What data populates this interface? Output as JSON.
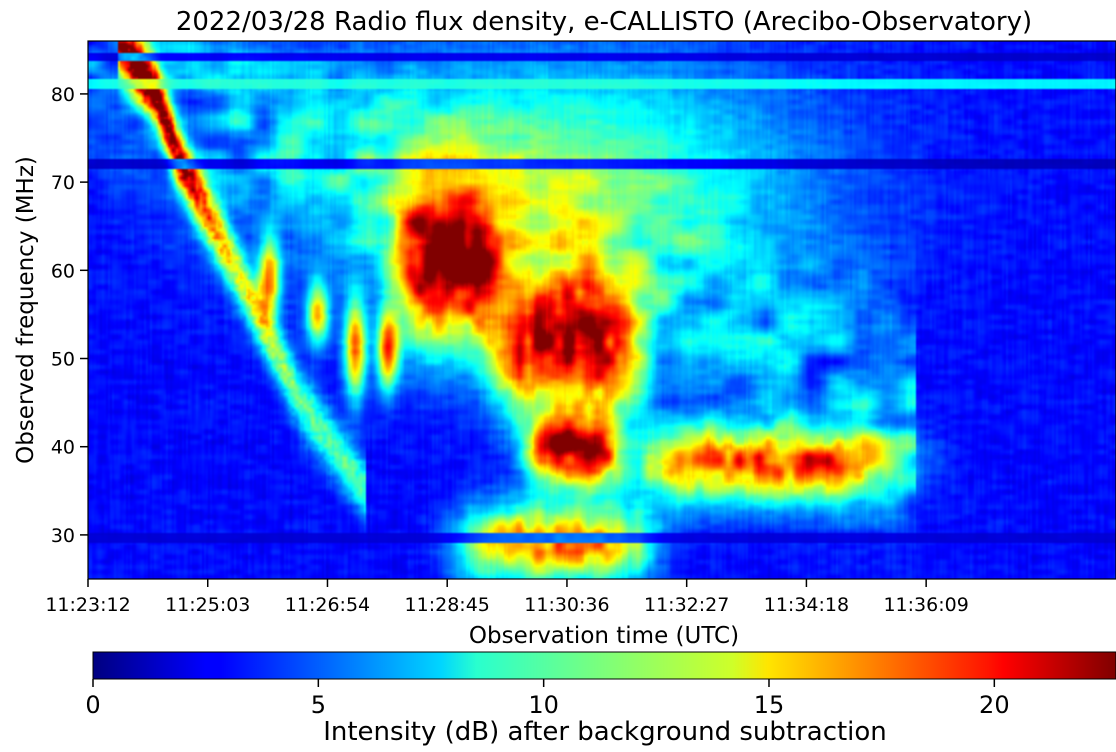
{
  "chart_data": {
    "type": "heatmap",
    "title": "2022/03/28  Radio flux density, e-CALLISTO (Arecibo-Observatory)",
    "xlabel": "Observation time (UTC)",
    "ylabel": "Observed frequency (MHz)",
    "x_ticks": [
      "11:23:12",
      "11:25:03",
      "11:26:54",
      "11:28:45",
      "11:30:36",
      "11:32:27",
      "11:34:18",
      "11:36:09"
    ],
    "x_range": [
      "11:23:12",
      "11:39:05"
    ],
    "y_ticks": [
      30,
      40,
      50,
      60,
      70,
      80
    ],
    "ylim": [
      25,
      86
    ],
    "colorbar": {
      "label": "Intensity (dB) after background subtraction",
      "ticks": [
        0,
        5,
        10,
        15,
        20
      ],
      "range": [
        0,
        22.7
      ],
      "colormap": "jet",
      "orientation": "horizontal",
      "placement": "bottom"
    },
    "grid": false,
    "features": {
      "background_level_db": 2,
      "interference_bands_mhz": [
        {
          "freq": 72,
          "db": 0.6
        },
        {
          "freq": 84.2,
          "db": 1.0
        },
        {
          "freq": 81.2,
          "db": 7.5
        },
        {
          "freq": 29.6,
          "db": 1.2
        }
      ],
      "fast_drift_burst": [
        {
          "time": "11:23:40",
          "freq": 86,
          "db": 20
        },
        {
          "time": "11:24:15",
          "freq": 80,
          "db": 21
        },
        {
          "time": "11:24:35",
          "freq": 73,
          "db": 20
        },
        {
          "time": "11:25:30",
          "freq": 60,
          "db": 12
        },
        {
          "time": "11:26:30",
          "freq": 45,
          "db": 9
        },
        {
          "time": "11:27:30",
          "freq": 35,
          "db": 8
        }
      ],
      "main_emission_regions": [
        {
          "time_start": "11:28:00",
          "time_end": "11:29:30",
          "freq_start": 52,
          "freq_end": 68,
          "peak_db": 19
        },
        {
          "time_start": "11:29:30",
          "time_end": "11:31:40",
          "freq_start": 44,
          "freq_end": 58,
          "peak_db": 21
        },
        {
          "time_start": "11:30:00",
          "time_end": "11:31:20",
          "freq_start": 36,
          "freq_end": 43,
          "peak_db": 22
        },
        {
          "time_start": "11:31:40",
          "time_end": "11:35:40",
          "freq_start": 34,
          "freq_end": 42,
          "peak_db": 18
        },
        {
          "time_start": "11:29:00",
          "time_end": "11:31:50",
          "freq_start": 25,
          "freq_end": 33,
          "peak_db": 18
        }
      ],
      "secondary_drifting_strands": [
        {
          "time": "11:26:00",
          "freq_start": 55,
          "freq_end": 63,
          "peak_db": 19
        },
        {
          "time": "11:26:45",
          "freq_start": 52,
          "freq_end": 58,
          "peak_db": 17
        },
        {
          "time": "11:27:20",
          "freq_start": 46,
          "freq_end": 56,
          "peak_db": 20
        },
        {
          "time": "11:27:50",
          "freq_start": 47,
          "freq_end": 55,
          "peak_db": 21
        }
      ]
    }
  }
}
